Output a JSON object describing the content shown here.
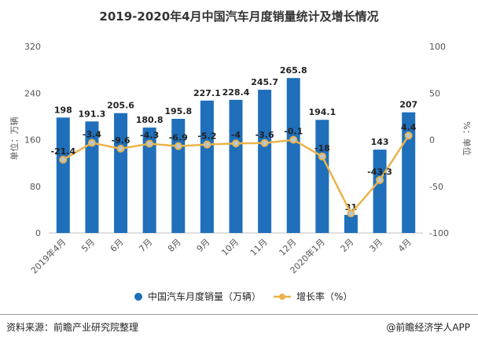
{
  "colors": {
    "bar": "#1f6fba",
    "line": "#e9b44c",
    "marker_fill": "#b9c7d6",
    "axis_text": "#555555",
    "label_text": "#222222"
  },
  "chart_data": {
    "type": "bar",
    "title": "2019-2020年4月中国汽车月度销量统计及增长情况",
    "categories": [
      "2019年4月",
      "5月",
      "6月",
      "7月",
      "8月",
      "9月",
      "10月",
      "11月",
      "12月",
      "2020年1月",
      "2月",
      "3月",
      "4月"
    ],
    "series": [
      {
        "name": "中国汽车月度销量（万辆）",
        "type": "bar",
        "axis": "left",
        "values": [
          198,
          191.3,
          205.6,
          180.8,
          195.8,
          227.1,
          228.4,
          245.7,
          265.8,
          194.1,
          31,
          143,
          207
        ],
        "labels": [
          "198",
          "191.3",
          "205.6",
          "180.8",
          "195.8",
          "227.1",
          "228.4",
          "245.7",
          "265.8",
          "194.1",
          "31",
          "143",
          "207"
        ]
      },
      {
        "name": "增长率（%）",
        "type": "line",
        "axis": "right",
        "values": [
          -21.4,
          -3.4,
          -9.6,
          -4.3,
          -6.9,
          -5.2,
          -4,
          -3.6,
          -0.1,
          -18,
          -79,
          -43.3,
          4.4
        ],
        "labels": [
          "-21.4",
          "-3.4",
          "-9.6",
          "-4.3",
          "-6.9",
          "-5.2",
          "-4",
          "-3.6",
          "-0.1",
          "-18",
          "",
          "-43.3",
          "4.4"
        ]
      }
    ],
    "y_left": {
      "label": "单位：万辆",
      "ticks": [
        "0",
        "80",
        "160",
        "240",
        "320"
      ],
      "range": [
        0,
        320
      ]
    },
    "y_right": {
      "label": "%：单位",
      "ticks": [
        "-100",
        "-50",
        "0",
        "50",
        "100"
      ],
      "range": [
        -100,
        100
      ]
    },
    "legend": {
      "placement": "bottom"
    },
    "grid": false
  },
  "footer": {
    "source": "资料来源：前瞻产业研究院整理",
    "brand": "@前瞻经济学人APP"
  }
}
